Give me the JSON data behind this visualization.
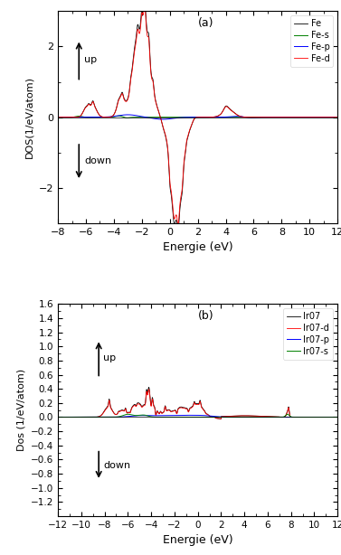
{
  "panel_a": {
    "title": "(a)",
    "xlabel": "Energie (eV)",
    "ylabel": "DOS(1/eV/atom)",
    "xlim": [
      -8,
      12
    ],
    "ylim": [
      -3,
      3
    ],
    "yticks": [
      -2,
      0,
      2
    ],
    "xticks": [
      -8,
      -6,
      -4,
      -2,
      0,
      2,
      4,
      6,
      8,
      10,
      12
    ],
    "legend_labels": [
      "Fe",
      "Fe-s",
      "Fe-p",
      "Fe-d"
    ],
    "legend_colors": [
      "black",
      "green",
      "blue",
      "red"
    ]
  },
  "panel_b": {
    "title": "(b)",
    "xlabel": "Energie (eV)",
    "ylabel": "Dos (1/eV/atom)",
    "xlim": [
      -12,
      12
    ],
    "ylim": [
      -1.4,
      1.6
    ],
    "yticks": [
      -1.2,
      -1.0,
      -0.8,
      -0.6,
      -0.4,
      -0.2,
      0.0,
      0.2,
      0.4,
      0.6,
      0.8,
      1.0,
      1.2,
      1.4,
      1.6
    ],
    "xticks": [
      -12,
      -10,
      -8,
      -6,
      -4,
      -2,
      0,
      2,
      4,
      6,
      8,
      10,
      12
    ],
    "legend_labels": [
      "Ir07",
      "Ir07-d",
      "Ir07-p",
      "Ir07-s"
    ],
    "legend_colors": [
      "black",
      "red",
      "blue",
      "green"
    ]
  }
}
